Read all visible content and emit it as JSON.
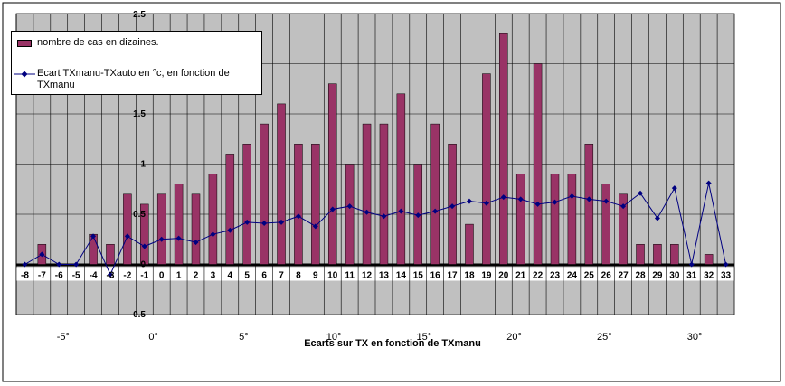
{
  "chart_data": {
    "type": "bar",
    "categories": [
      "-8",
      "-7",
      "-6",
      "-5",
      "-4",
      "-3",
      "-2",
      "-1",
      "0",
      "1",
      "2",
      "3",
      "4",
      "5",
      "6",
      "7",
      "8",
      "9",
      "10",
      "11",
      "12",
      "13",
      "14",
      "15",
      "16",
      "17",
      "18",
      "19",
      "20",
      "21",
      "22",
      "23",
      "24",
      "25",
      "26",
      "27",
      "28",
      "29",
      "30",
      "31",
      "32",
      "33"
    ],
    "series": [
      {
        "name": "nombre de cas en dizaines.",
        "kind": "bar",
        "color": "#993366",
        "values": [
          0,
          0.2,
          0,
          0,
          0.3,
          0.2,
          0.7,
          0.6,
          0.7,
          0.8,
          0.7,
          0.9,
          1.1,
          1.2,
          1.4,
          1.6,
          1.2,
          1.2,
          1.8,
          1.0,
          1.4,
          1.4,
          1.7,
          1.0,
          1.4,
          1.2,
          0.4,
          1.9,
          2.3,
          0.9,
          2.0,
          0.9,
          0.9,
          1.2,
          0.8,
          0.7,
          0.2,
          0.2,
          0.2,
          0,
          0.1,
          0
        ]
      },
      {
        "name": "Ecart TXmanu-TXauto en °c, en fonction de TXmanu",
        "kind": "line",
        "color": "#000080",
        "values": [
          0,
          0.1,
          0,
          0,
          0.28,
          -0.1,
          0.28,
          0.18,
          0.25,
          0.26,
          0.22,
          0.3,
          0.34,
          0.42,
          0.41,
          0.42,
          0.48,
          0.38,
          0.55,
          0.58,
          0.52,
          0.48,
          0.53,
          0.49,
          0.53,
          0.58,
          0.63,
          0.61,
          0.67,
          0.65,
          0.6,
          0.62,
          0.68,
          0.65,
          0.63,
          0.58,
          0.71,
          0.46,
          0.76,
          0,
          0.81,
          0
        ]
      }
    ],
    "ylim": [
      -0.5,
      2.5
    ],
    "yticks": [
      "-0.5",
      "0",
      "0.5",
      "1",
      "1.5",
      "2",
      "2.5"
    ],
    "xlabel": "Ecarts sur TX en fonction de TXmanu",
    "top_axis": {
      "labels": [
        "-5°",
        "0°",
        "5°",
        "10°",
        "15°",
        "20°",
        "25°",
        "30°"
      ],
      "values": [
        -5,
        0,
        5,
        10,
        15,
        20,
        25,
        30
      ],
      "range": [
        -7.6,
        32.2
      ]
    },
    "grid": true,
    "legend_position": "top-left",
    "colors": {
      "plot_bg": "#c0c0c0",
      "bar": "#993366",
      "line": "#000080"
    }
  }
}
